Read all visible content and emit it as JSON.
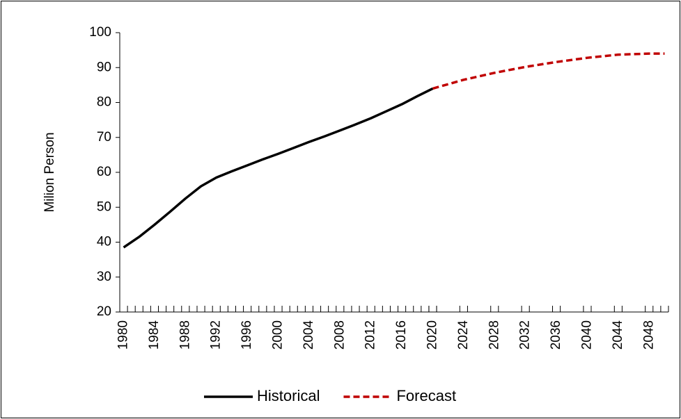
{
  "chart_data": {
    "type": "line",
    "y_label": "Milion Person",
    "xlim": [
      1979.5,
      2050.5
    ],
    "xticks": [
      1980,
      1984,
      1988,
      1992,
      1996,
      2000,
      2004,
      2008,
      2012,
      2016,
      2020,
      2024,
      2028,
      2032,
      2036,
      2040,
      2044,
      2048
    ],
    "ylim": [
      20,
      100
    ],
    "yticks": [
      20,
      30,
      40,
      50,
      60,
      70,
      80,
      90,
      100
    ],
    "legend": "bottom",
    "series": [
      {
        "name": "Historical",
        "color": "#000000",
        "dash": false,
        "x": [
          1980,
          1982,
          1984,
          1986,
          1988,
          1990,
          1992,
          1994,
          1996,
          1998,
          2000,
          2002,
          2004,
          2006,
          2008,
          2010,
          2012,
          2014,
          2016,
          2018,
          2020
        ],
        "values": [
          38.5,
          41.5,
          45,
          48.7,
          52.5,
          56,
          58.5,
          60.3,
          62,
          63.7,
          65.3,
          67,
          68.7,
          70.3,
          72,
          73.7,
          75.5,
          77.5,
          79.5,
          81.8,
          84
        ]
      },
      {
        "name": "Forecast",
        "color": "#c00000",
        "dash": true,
        "x": [
          2020,
          2024,
          2028,
          2032,
          2036,
          2040,
          2044,
          2048,
          2050
        ],
        "values": [
          84,
          86.5,
          88.5,
          90.2,
          91.6,
          92.8,
          93.7,
          94,
          94
        ]
      }
    ]
  }
}
